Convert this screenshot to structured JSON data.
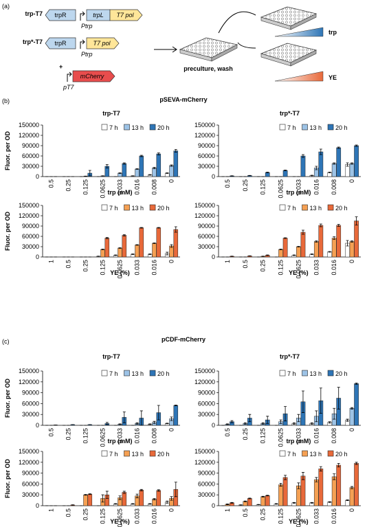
{
  "figure": {
    "panel_a": "(a)",
    "panel_b": "(b)",
    "panel_c": "(c)",
    "section_b": "pSEVA-mCherry",
    "section_c": "pCDF-mCherry"
  },
  "diagram": {
    "construct1": {
      "name": "trp-T7",
      "genes": [
        "trpR",
        "trpL",
        "T7 pol"
      ],
      "promoter": "Ptrp"
    },
    "construct2": {
      "name": "trp*-T7",
      "genes": [
        "trpR",
        "T7 pol"
      ],
      "promoter": "Ptrp"
    },
    "plus": "+",
    "reporter": {
      "gene": "mCherry",
      "promoter": "pT7"
    },
    "step": "preculture, wash",
    "gradients": [
      "trp",
      "YE"
    ]
  },
  "chart_data": [
    {
      "type": "bar",
      "title": "trp-T7",
      "ylabel": "Fluor. per OD",
      "xlabel": "trp (mM)",
      "categories": [
        "0.5",
        "0.25",
        "0.125",
        "0.0625",
        "0.033",
        "0.016",
        "0.008",
        "0"
      ],
      "series": [
        {
          "name": "7 h",
          "color": "#ffffff",
          "values": [
            0,
            0,
            0,
            0,
            0,
            2000,
            5000,
            10000
          ],
          "errors": [
            0,
            0,
            0,
            0,
            0,
            500,
            1000,
            1000
          ]
        },
        {
          "name": "13 h",
          "color": "#9dc3e6",
          "values": [
            0,
            0,
            1000,
            2000,
            10000,
            22000,
            25000,
            32000
          ],
          "errors": [
            0,
            0,
            500,
            500,
            1000,
            1000,
            2000,
            2000
          ]
        },
        {
          "name": "20 h",
          "color": "#2e75b6",
          "values": [
            0,
            0,
            10000,
            30000,
            38000,
            60000,
            66000,
            75000
          ],
          "errors": [
            0,
            0,
            8000,
            5000,
            2000,
            2000,
            3000,
            4000
          ]
        }
      ],
      "ylim": [
        0,
        150000
      ],
      "yticks": [
        0,
        30000,
        60000,
        90000,
        120000,
        150000
      ],
      "grid": false,
      "legend": "top"
    },
    {
      "type": "bar",
      "title": "trp*-T7",
      "xlabel": "trp (mM)",
      "categories": [
        "0.5",
        "0.25",
        "0.125",
        "0.0625",
        "0.033",
        "0.016",
        "0.008",
        "0"
      ],
      "series": [
        {
          "name": "7 h",
          "color": "#ffffff",
          "values": [
            0,
            0,
            0,
            0,
            0,
            3000,
            12000,
            35000
          ],
          "errors": [
            0,
            0,
            0,
            0,
            0,
            1000,
            1000,
            5000
          ]
        },
        {
          "name": "13 h",
          "color": "#9dc3e6",
          "values": [
            0,
            0,
            0,
            0,
            0,
            25000,
            38000,
            38000
          ],
          "errors": [
            0,
            0,
            0,
            0,
            0,
            5000,
            2000,
            2000
          ]
        },
        {
          "name": "20 h",
          "color": "#2e75b6",
          "values": [
            2000,
            3000,
            12000,
            18000,
            60000,
            72000,
            84000,
            90000
          ],
          "errors": [
            500,
            500,
            1000,
            1000,
            4000,
            8000,
            2000,
            2000
          ]
        }
      ],
      "ylim": [
        0,
        150000
      ],
      "yticks": [
        0,
        30000,
        60000,
        90000,
        120000,
        150000
      ],
      "grid": false,
      "legend": "top"
    },
    {
      "type": "bar",
      "ylabel": "Fluor. per OD",
      "xlabel": "YE (%)",
      "categories": [
        "1",
        "0.5",
        "0.25",
        "0.125",
        "0.0625",
        "0.033",
        "0.016",
        "0"
      ],
      "series": [
        {
          "name": "7 h",
          "color": "#ffffff",
          "values": [
            0,
            0,
            0,
            2000,
            5000,
            8000,
            8000,
            10000
          ],
          "errors": [
            0,
            0,
            0,
            500,
            1000,
            1000,
            1000,
            4000
          ]
        },
        {
          "name": "13 h",
          "color": "#f5a053",
          "values": [
            0,
            0,
            0,
            22000,
            26000,
            35000,
            40000,
            32000
          ],
          "errors": [
            0,
            0,
            0,
            1000,
            1000,
            1000,
            1000,
            4000
          ]
        },
        {
          "name": "20 h",
          "color": "#e8693a",
          "values": [
            0,
            0,
            0,
            55000,
            63000,
            85000,
            85000,
            80000
          ],
          "errors": [
            0,
            0,
            0,
            2000,
            2000,
            1000,
            1000,
            8000
          ]
        }
      ],
      "ylim": [
        0,
        150000
      ],
      "yticks": [
        0,
        30000,
        60000,
        90000,
        120000,
        150000
      ],
      "grid": false,
      "legend": "top"
    },
    {
      "type": "bar",
      "xlabel": "YE (%)",
      "categories": [
        "1",
        "0.5",
        "0.25",
        "0.125",
        "0.0625",
        "0.033",
        "0.016",
        "0"
      ],
      "series": [
        {
          "name": "7 h",
          "color": "#ffffff",
          "values": [
            0,
            0,
            0,
            0,
            5000,
            8000,
            15000,
            40000
          ],
          "errors": [
            0,
            0,
            0,
            0,
            1000,
            1000,
            1000,
            8000
          ]
        },
        {
          "name": "13 h",
          "color": "#f5a053",
          "values": [
            0,
            0,
            2000,
            22000,
            30000,
            45000,
            55000,
            45000
          ],
          "errors": [
            0,
            0,
            500,
            1000,
            1000,
            2000,
            4000,
            2000
          ]
        },
        {
          "name": "20 h",
          "color": "#e8693a",
          "values": [
            2000,
            3000,
            5000,
            55000,
            72000,
            92000,
            92000,
            105000
          ],
          "errors": [
            500,
            500,
            1000,
            1000,
            6000,
            4000,
            3000,
            12000
          ]
        }
      ],
      "ylim": [
        0,
        150000
      ],
      "yticks": [
        0,
        30000,
        60000,
        90000,
        120000,
        150000
      ],
      "grid": false,
      "legend": "top"
    },
    {
      "type": "bar",
      "title": "trp-T7",
      "ylabel": "Fluor. per OD",
      "xlabel": "trp (mM)",
      "categories": [
        "0.5",
        "0.25",
        "0.125",
        "0.0625",
        "0.033",
        "0.016",
        "0.008",
        "0"
      ],
      "series": [
        {
          "name": "7 h",
          "color": "#ffffff",
          "values": [
            0,
            0,
            0,
            0,
            0,
            0,
            3000,
            5000
          ],
          "errors": [
            0,
            0,
            0,
            0,
            0,
            0,
            1000,
            1000
          ]
        },
        {
          "name": "13 h",
          "color": "#9dc3e6",
          "values": [
            0,
            0,
            0,
            0,
            3000,
            5000,
            8000,
            18000
          ],
          "errors": [
            0,
            0,
            0,
            0,
            1000,
            2000,
            3000,
            5000
          ]
        },
        {
          "name": "20 h",
          "color": "#2e75b6",
          "values": [
            1000,
            2000,
            2000,
            5000,
            22000,
            20000,
            35000,
            55000
          ],
          "errors": [
            0,
            0,
            0,
            3000,
            15000,
            20000,
            20000,
            1000
          ]
        }
      ],
      "ylim": [
        0,
        150000
      ],
      "yticks": [
        0,
        30000,
        60000,
        90000,
        120000,
        150000
      ],
      "grid": false,
      "legend": "top"
    },
    {
      "type": "bar",
      "title": "trp*-T7",
      "xlabel": "trp (mM)",
      "categories": [
        "0.5",
        "0.25",
        "0.125",
        "0.0625",
        "0.033",
        "0.016",
        "0.008",
        "0"
      ],
      "series": [
        {
          "name": "7 h",
          "color": "#ffffff",
          "values": [
            0,
            0,
            0,
            0,
            5000,
            5000,
            8000,
            14000
          ],
          "errors": [
            0,
            0,
            0,
            0,
            2000,
            2000,
            2000,
            3000
          ]
        },
        {
          "name": "13 h",
          "color": "#9dc3e6",
          "values": [
            3000,
            5000,
            5000,
            10000,
            20000,
            25000,
            32000,
            47000
          ],
          "errors": [
            1000,
            2000,
            2000,
            5000,
            10000,
            15000,
            15000,
            2000
          ]
        },
        {
          "name": "20 h",
          "color": "#2e75b6",
          "values": [
            10000,
            20000,
            15000,
            32000,
            65000,
            68000,
            75000,
            115000
          ],
          "errors": [
            3000,
            10000,
            10000,
            20000,
            30000,
            35000,
            30000,
            2000
          ]
        }
      ],
      "ylim": [
        0,
        150000
      ],
      "yticks": [
        0,
        30000,
        60000,
        90000,
        120000,
        150000
      ],
      "grid": false,
      "legend": "top"
    },
    {
      "type": "bar",
      "ylabel": "Fluor. per OD",
      "xlabel": "YE (%)",
      "categories": [
        "1",
        "0.5",
        "0.25",
        "0.125",
        "0.0625",
        "0.033",
        "0.016",
        "0"
      ],
      "series": [
        {
          "name": "7 h",
          "color": "#ffffff",
          "values": [
            0,
            0,
            0,
            0,
            5000,
            5000,
            5000,
            10000
          ],
          "errors": [
            0,
            0,
            0,
            0,
            1000,
            1000,
            1000,
            3000
          ]
        },
        {
          "name": "13 h",
          "color": "#f5a053",
          "values": [
            0,
            0,
            30000,
            20000,
            22000,
            27000,
            18000,
            20000
          ],
          "errors": [
            0,
            0,
            1000,
            10000,
            5000,
            5000,
            2000,
            5000
          ]
        },
        {
          "name": "20 h",
          "color": "#e8693a",
          "values": [
            0,
            2000,
            32000,
            30000,
            37000,
            43000,
            42000,
            45000
          ],
          "errors": [
            0,
            500,
            1000,
            10000,
            3000,
            2000,
            2000,
            20000
          ]
        }
      ],
      "ylim": [
        0,
        150000
      ],
      "yticks": [
        0,
        30000,
        60000,
        90000,
        120000,
        150000
      ],
      "grid": false,
      "legend": "top"
    },
    {
      "type": "bar",
      "xlabel": "YE (%)",
      "categories": [
        "1",
        "0.5",
        "0.25",
        "0.125",
        "0.0625",
        "0.033",
        "0.016",
        "0"
      ],
      "series": [
        {
          "name": "7 h",
          "color": "#ffffff",
          "values": [
            0,
            2000,
            3000,
            5000,
            8000,
            8000,
            10000,
            15000
          ],
          "errors": [
            0,
            500,
            500,
            1000,
            1000,
            1000,
            1000,
            1000
          ]
        },
        {
          "name": "13 h",
          "color": "#f5a053",
          "values": [
            4000,
            12000,
            25000,
            58000,
            55000,
            72000,
            80000,
            50000
          ],
          "errors": [
            1000,
            1000,
            1000,
            4000,
            8000,
            6000,
            8000,
            3000
          ]
        },
        {
          "name": "20 h",
          "color": "#e8693a",
          "values": [
            8000,
            20000,
            28000,
            78000,
            82000,
            102000,
            112000,
            117000
          ],
          "errors": [
            1000,
            1000,
            1000,
            6000,
            10000,
            6000,
            5000,
            3000
          ]
        }
      ],
      "ylim": [
        0,
        150000
      ],
      "yticks": [
        0,
        30000,
        60000,
        90000,
        120000,
        150000
      ],
      "grid": false,
      "legend": "top"
    }
  ]
}
